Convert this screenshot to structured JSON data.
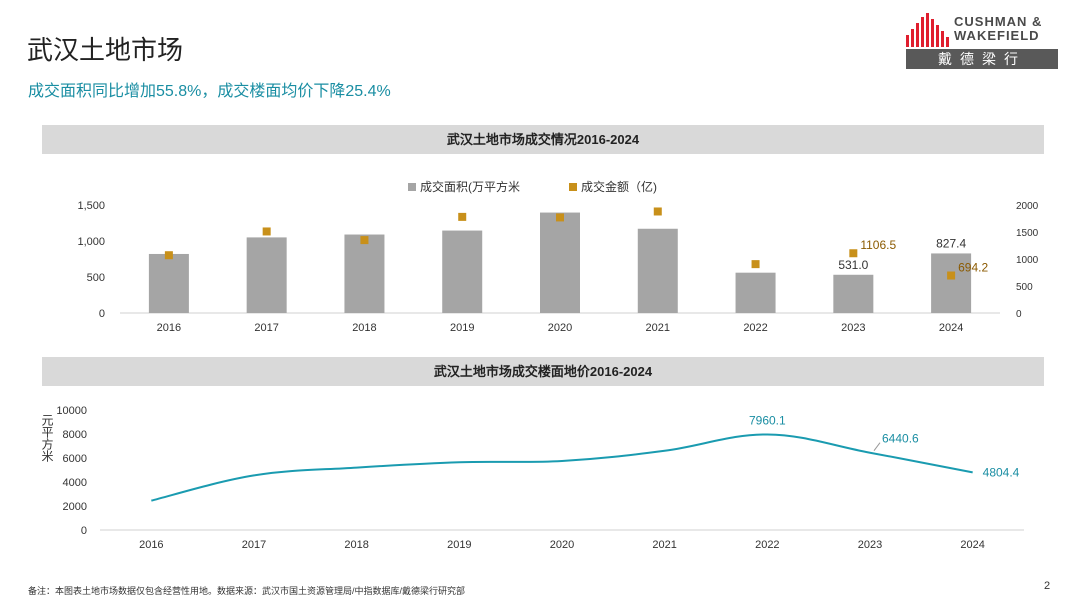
{
  "header": {
    "title": "武汉土地市场",
    "subtitle": "成交面积同比增加55.8%，成交楼面均价下降25.4%"
  },
  "logo": {
    "line1": "CUSHMAN &",
    "line2": "WAKEFIELD",
    "cn": "戴德梁行",
    "color": "#e01e2e"
  },
  "chart_data": [
    {
      "type": "bar",
      "title": "武汉土地市场成交情况2016-2024",
      "categories": [
        "2016",
        "2017",
        "2018",
        "2019",
        "2020",
        "2021",
        "2022",
        "2023",
        "2024"
      ],
      "series": [
        {
          "name": "成交面积(万平方米",
          "kind": "bar",
          "axis": "left",
          "color": "#a5a5a5",
          "values": [
            820,
            1050,
            1090,
            1145,
            1395,
            1170,
            560,
            531.0,
            827.4
          ]
        },
        {
          "name": "成交金额（亿)",
          "kind": "scatter",
          "axis": "right",
          "color": "#c8901a",
          "values": [
            1070,
            1510,
            1350,
            1780,
            1770,
            1880,
            905,
            1106.5,
            694.2
          ]
        }
      ],
      "data_labels": [
        {
          "series": 0,
          "index": 7,
          "text": "531.0"
        },
        {
          "series": 0,
          "index": 8,
          "text": "827.4"
        },
        {
          "series": 1,
          "index": 7,
          "text": "1106.5"
        },
        {
          "series": 1,
          "index": 8,
          "text": "694.2"
        }
      ],
      "y_left": {
        "ticks": [
          "0",
          "500",
          "1,000",
          "1,500"
        ],
        "tick_values": [
          0,
          500,
          1000,
          1500
        ],
        "ylim": [
          0,
          1500
        ]
      },
      "y_right": {
        "ticks": [
          "0",
          "500",
          "1000",
          "1500",
          "2000"
        ],
        "tick_values": [
          0,
          500,
          1000,
          1500,
          2000
        ],
        "ylim": [
          0,
          2000
        ]
      },
      "legend_position": "top-center",
      "grid": false
    },
    {
      "type": "line",
      "title": "武汉土地市场成交楼面地价2016-2024",
      "categories": [
        "2016",
        "2017",
        "2018",
        "2019",
        "2020",
        "2021",
        "2022",
        "2023",
        "2024"
      ],
      "series": [
        {
          "name": "楼面地价",
          "color": "#1a9bb0",
          "values": [
            2450,
            4550,
            5200,
            5650,
            5750,
            6600,
            7960.1,
            6440.6,
            4804.4
          ]
        }
      ],
      "data_labels": [
        {
          "index": 6,
          "text": "7960.1"
        },
        {
          "index": 7,
          "text": "6440.6"
        },
        {
          "index": 8,
          "text": "4804.4"
        }
      ],
      "ylabel": "元平方米",
      "y": {
        "ticks": [
          "0",
          "2000",
          "4000",
          "6000",
          "8000",
          "10000"
        ],
        "tick_values": [
          0,
          2000,
          4000,
          6000,
          8000,
          10000
        ],
        "ylim": [
          0,
          10000
        ]
      },
      "grid": false
    }
  ],
  "footer": {
    "note": "备注：本图表土地市场数据仅包含经营性用地。数据来源：武汉市国土资源管理局/中指数据库/戴德梁行研究部",
    "page": "2"
  }
}
